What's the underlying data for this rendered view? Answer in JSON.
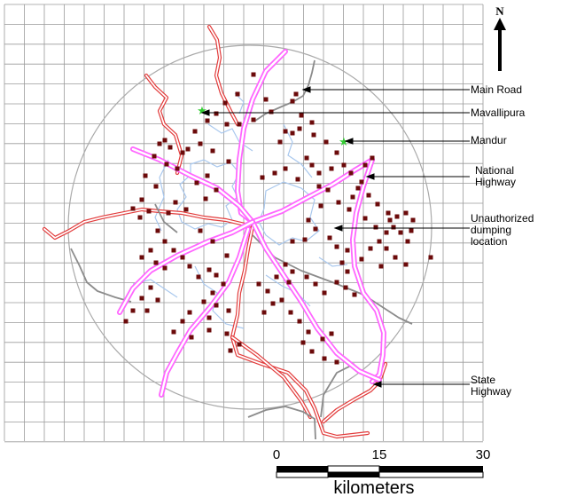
{
  "map": {
    "north_label": "N",
    "legend": [
      {
        "key": "main_road",
        "label": [
          "Main Road"
        ]
      },
      {
        "key": "mavallipura",
        "label": [
          "Mavallipura"
        ]
      },
      {
        "key": "mandur",
        "label": [
          "Mandur"
        ]
      },
      {
        "key": "national_highway",
        "label": [
          "National",
          "Highway"
        ]
      },
      {
        "key": "dumping",
        "label": [
          "Unauthorized",
          "dumping",
          "location"
        ]
      },
      {
        "key": "state_highway",
        "label": [
          "State",
          "Highway"
        ]
      }
    ],
    "scale_bar": {
      "ticks": [
        "0",
        "15",
        "30"
      ],
      "unit": "kilometers"
    },
    "colors": {
      "grid": "#9a9a9a",
      "national_highway": "#ff66ff",
      "state_highway": "#e23b3b",
      "main_road": "#8c8c8c",
      "water": "#a9c8ee",
      "dumping_marker": "#6b0a0a",
      "landfill_star": "#33cc33"
    }
  }
}
